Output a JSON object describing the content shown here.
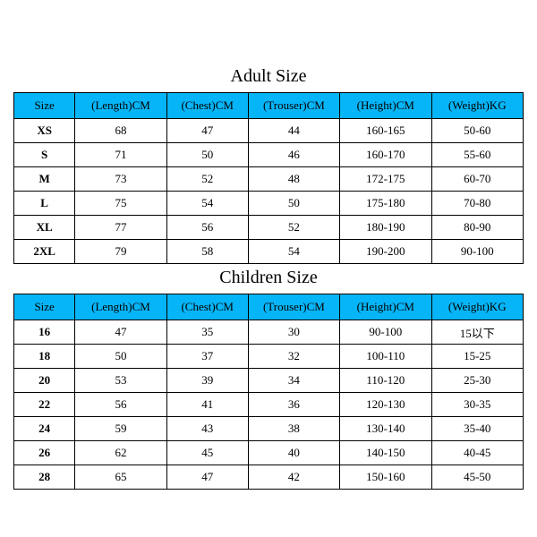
{
  "tables": [
    {
      "title": "Adult Size",
      "columns": [
        "Size",
        "(Length)CM",
        "(Chest)CM",
        "(Trouser)CM",
        "(Height)CM",
        "(Weight)KG"
      ],
      "rows": [
        [
          "XS",
          "68",
          "47",
          "44",
          "160-165",
          "50-60"
        ],
        [
          "S",
          "71",
          "50",
          "46",
          "160-170",
          "55-60"
        ],
        [
          "M",
          "73",
          "52",
          "48",
          "172-175",
          "60-70"
        ],
        [
          "L",
          "75",
          "54",
          "50",
          "175-180",
          "70-80"
        ],
        [
          "XL",
          "77",
          "56",
          "52",
          "180-190",
          "80-90"
        ],
        [
          "2XL",
          "79",
          "58",
          "54",
          "190-200",
          "90-100"
        ]
      ]
    },
    {
      "title": "Children Size",
      "columns": [
        "Size",
        "(Length)CM",
        "(Chest)CM",
        "(Trouser)CM",
        "(Height)CM",
        "(Weight)KG"
      ],
      "rows": [
        [
          "16",
          "47",
          "35",
          "30",
          "90-100",
          "15以下"
        ],
        [
          "18",
          "50",
          "37",
          "32",
          "100-110",
          "15-25"
        ],
        [
          "20",
          "53",
          "39",
          "34",
          "110-120",
          "25-30"
        ],
        [
          "22",
          "56",
          "41",
          "36",
          "120-130",
          "30-35"
        ],
        [
          "24",
          "59",
          "43",
          "38",
          "130-140",
          "35-40"
        ],
        [
          "26",
          "62",
          "45",
          "40",
          "140-150",
          "40-45"
        ],
        [
          "28",
          "65",
          "47",
          "42",
          "150-160",
          "45-50"
        ]
      ]
    }
  ],
  "style": {
    "header_bg": "#06b5f7",
    "cell_bg": "#ffffff",
    "border_color": "#000000",
    "text_color": "#000000",
    "title_fontsize": 20,
    "header_fontsize": 13,
    "cell_fontsize": 13,
    "font_family": "Times New Roman",
    "col_classes": [
      "col-size",
      "col-length",
      "col-chest",
      "col-trouser",
      "col-height",
      "col-weight"
    ]
  }
}
